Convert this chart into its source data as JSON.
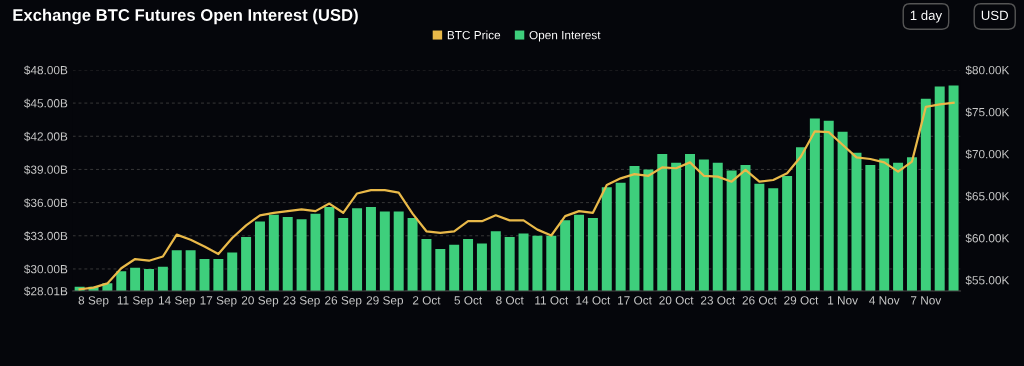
{
  "chart_data": {
    "type": "bar",
    "title": "Exchange BTC Futures Open Interest (USD)",
    "annotations": [
      "1 day",
      "USD"
    ],
    "categories": [
      null,
      "8 Sep",
      null,
      null,
      "11 Sep",
      null,
      null,
      "14 Sep",
      null,
      null,
      "17 Sep",
      null,
      null,
      "20 Sep",
      null,
      null,
      "23 Sep",
      null,
      null,
      "26 Sep",
      null,
      null,
      "29 Sep",
      null,
      null,
      "2 Oct",
      null,
      null,
      "5 Oct",
      null,
      null,
      "8 Oct",
      null,
      null,
      "11 Oct",
      null,
      null,
      "14 Oct",
      null,
      null,
      "17 Oct",
      null,
      null,
      "20 Oct",
      null,
      null,
      "23 Oct",
      null,
      null,
      "26 Oct",
      null,
      null,
      "29 Oct",
      null,
      null,
      "1 Nov",
      null,
      null,
      "4 Nov",
      null,
      null,
      "7 Nov",
      null,
      null
    ],
    "series": [
      {
        "name": "BTC Price",
        "type": "line",
        "axis": "y2",
        "color": "#e9b949",
        "values": [
          53.9,
          54.1,
          54.6,
          56.4,
          57.5,
          57.3,
          57.8,
          60.4,
          59.8,
          59.0,
          58.1,
          60.0,
          61.5,
          62.7,
          63.0,
          63.2,
          63.4,
          63.2,
          64.1,
          63.0,
          65.3,
          65.7,
          65.7,
          65.4,
          62.9,
          60.8,
          60.6,
          60.8,
          62.0,
          62.0,
          62.7,
          62.1,
          62.1,
          61.0,
          60.3,
          62.6,
          63.2,
          63.0,
          66.3,
          67.1,
          67.6,
          67.4,
          68.4,
          68.3,
          69.0,
          67.4,
          67.3,
          66.7,
          68.1,
          66.7,
          66.9,
          67.7,
          69.7,
          72.7,
          72.6,
          71.1,
          69.6,
          69.4,
          69.0,
          67.9,
          69.1,
          75.6,
          75.9,
          76.1
        ]
      },
      {
        "name": "Open Interest",
        "color": "#3ecf7c",
        "values": [
          28.4,
          28.4,
          28.7,
          29.8,
          30.1,
          30.0,
          30.2,
          31.7,
          31.7,
          30.9,
          30.9,
          31.5,
          32.9,
          34.3,
          34.9,
          34.7,
          34.5,
          35.0,
          35.6,
          34.6,
          35.5,
          35.6,
          35.2,
          35.2,
          34.6,
          32.7,
          31.8,
          32.2,
          32.7,
          32.3,
          33.4,
          32.9,
          33.2,
          33.0,
          33.0,
          34.4,
          34.9,
          34.6,
          37.4,
          37.8,
          39.3,
          39.0,
          40.4,
          39.6,
          40.4,
          39.9,
          39.6,
          38.9,
          39.4,
          37.7,
          37.3,
          38.4,
          41.0,
          43.6,
          43.4,
          42.4,
          40.5,
          39.4,
          40.0,
          39.6,
          40.1,
          45.4,
          46.5,
          46.6
        ]
      }
    ],
    "ylim": [
      28.01,
      48
    ],
    "yticks": [
      {
        "value": 28.01,
        "label": "$28.01B"
      },
      {
        "value": 30,
        "label": "$30.00B"
      },
      {
        "value": 33,
        "label": "$33.00B"
      },
      {
        "value": 36,
        "label": "$36.00B"
      },
      {
        "value": 39,
        "label": "$39.00B"
      },
      {
        "value": 42,
        "label": "$42.00B"
      },
      {
        "value": 45,
        "label": "$45.00B"
      },
      {
        "value": 48,
        "label": "$48.00B"
      }
    ],
    "y2lim": [
      53.7,
      80
    ],
    "y2ticks": [
      {
        "value": 55,
        "label": "$55.00K"
      },
      {
        "value": 60,
        "label": "$60.00K"
      },
      {
        "value": 65,
        "label": "$65.00K"
      },
      {
        "value": 70,
        "label": "$70.00K"
      },
      {
        "value": 75,
        "label": "$75.00K"
      },
      {
        "value": 80,
        "label": "$80.00K"
      }
    ],
    "grid": "y",
    "legend": "top"
  }
}
